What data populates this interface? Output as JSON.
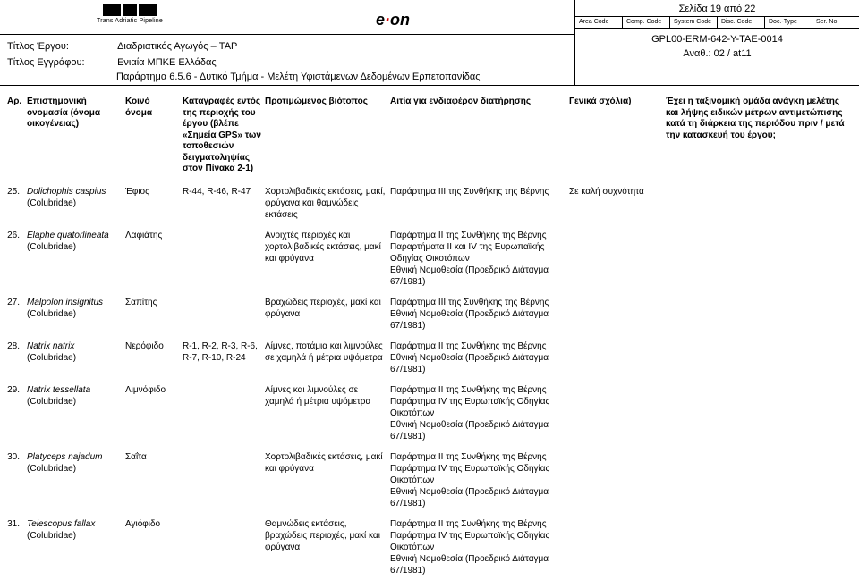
{
  "header": {
    "logo_sub": "Trans Adriatic Pipeline",
    "page_indicator": "Σελίδα 19 από 22",
    "meta_headers": [
      "Area Code",
      "Comp. Code",
      "System Code",
      "Disc. Code",
      "Doc.-Type",
      "Ser. No."
    ],
    "doc_code": "GPL00-ERM-642-Y-TAE-0014",
    "revision": "Αναθ.: 02 / at11",
    "proj_label": "Τίτλος Έργου:",
    "proj_value": "Διαδριατικός Αγωγός – TAP",
    "doc_label": "Τίτλος Εγγράφου:",
    "doc_value": "Ενιαία ΜΠΚΕ Ελλάδας",
    "appendix": "Παράρτημα 6.5.6 - Δυτικό Τμήμα - Μελέτη Υφιστάμενων Δεδομένων Ερπετοπανίδας"
  },
  "columns": [
    "Αρ.",
    "Επιστημονική ονομασία (όνομα οικογένειας)",
    "Κοινό όνομα",
    "Καταγραφές εντός της περιοχής του έργου (βλέπε «Σημεία GPS» των τοποθεσιών δειγματοληψίας στον Πίνακα 2-1)",
    "Προτιμώμενος βιότοπος",
    "Αιτία για ενδιαφέρον διατήρησης",
    "Γενικά σχόλια)",
    "Έχει η ταξινομική ομάδα ανάγκη μελέτης και λήψης ειδικών μέτρων αντιμετώπισης κατά τη διάρκεια της περιόδου πριν / μετά την κατασκευή του έργου;"
  ],
  "rows": [
    {
      "n": "25.",
      "sci": "Dolichophis caspius",
      "fam": "(Colubridae)",
      "com": "Έφιος",
      "rec": "R-44, R-46, R-47",
      "hab": "Χορτολιβαδικές εκτάσεις, μακί, φρύγανα και θαμνώδεις εκτάσεις",
      "reason": "Παράρτημα ΙΙΙ της Συνθήκης της Βέρνης",
      "note": "Σε καλή συχνότητα"
    },
    {
      "n": "26.",
      "sci": "Elaphe quatorlineata",
      "fam": "(Colubridae)",
      "com": "Λαφιάτης",
      "rec": "",
      "hab": "Ανοιχτές περιοχές και χορτολιβαδικές εκτάσεις, μακί και φρύγανα",
      "reason": "Παράρτημα ΙΙ της Συνθήκης της Βέρνης\nΠαραρτήματα ΙΙ και IV της Ευρωπαϊκής Οδηγίας Οικοτόπων\nΕθνική Νομοθεσία (Προεδρικό Διάταγμα 67/1981)",
      "note": ""
    },
    {
      "n": "27.",
      "sci": "Malpolon insignitus",
      "fam": "(Colubridae)",
      "com": "Σαπίτης",
      "rec": "",
      "hab": "Βραχώδεις περιοχές, μακί και φρύγανα",
      "reason": "Παράρτημα ΙΙΙ της Συνθήκης της Βέρνης\nΕθνική Νομοθεσία (Προεδρικό Διάταγμα 67/1981)",
      "note": ""
    },
    {
      "n": "28.",
      "sci": "Natrix natrix",
      "fam": "(Colubridae)",
      "com": "Νερόφιδο",
      "rec": "R-1, R-2, R-3, R-6, R-7, R-10, R-24",
      "hab": "Λίμνες, ποτάμια και λιμνούλες σε χαμηλά ή μέτρια υψόμετρα",
      "reason": "Παράρτημα ΙΙ της Συνθήκης της Βέρνης\nΕθνική Νομοθεσία (Προεδρικό Διάταγμα 67/1981)",
      "note": ""
    },
    {
      "n": "29.",
      "sci": "Natrix tessellata",
      "fam": "(Colubridae)",
      "com": "Λιμνόφιδο",
      "rec": "",
      "hab": "Λίμνες και λιμνούλες σε χαμηλά ή μέτρια υψόμετρα",
      "reason": "Παράρτημα ΙΙ της Συνθήκης της Βέρνης\nΠαράρτημα IV της Ευρωπαϊκής Οδηγίας Οικοτόπων\nΕθνική Νομοθεσία (Προεδρικό Διάταγμα 67/1981)",
      "note": ""
    },
    {
      "n": "30.",
      "sci": "Platyceps najadum",
      "fam": "(Colubridae)",
      "com": "Σαΐτα",
      "rec": "",
      "hab": "Χορτολιβαδικές εκτάσεις, μακί και φρύγανα",
      "reason": "Παράρτημα ΙΙ της Συνθήκης της Βέρνης\nΠαράρτημα IV της Ευρωπαϊκής Οδηγίας Οικοτόπων\nΕθνική Νομοθεσία (Προεδρικό Διάταγμα 67/1981)",
      "note": ""
    },
    {
      "n": "31.",
      "sci": "Telescopus fallax",
      "fam": "(Colubridae)",
      "com": "Αγιόφιδο",
      "rec": "",
      "hab": "Θαμνώδεις εκτάσεις, βραχώδεις περιοχές, μακί και φρύγανα",
      "reason": "Παράρτημα ΙΙ της Συνθήκης της Βέρνης\nΠαράρτημα IV της Ευρωπαϊκής Οδηγίας Οικοτόπων\nΕθνική Νομοθεσία (Προεδρικό Διάταγμα 67/1981)",
      "note": ""
    }
  ]
}
